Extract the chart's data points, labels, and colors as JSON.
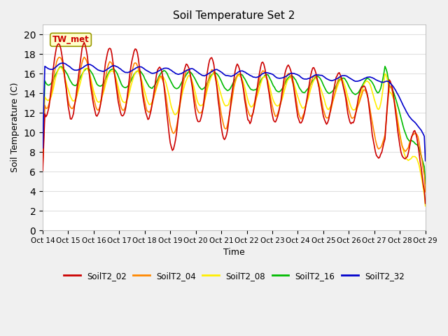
{
  "title": "Soil Temperature Set 2",
  "xlabel": "Time",
  "ylabel": "Soil Temperature (C)",
  "ylim": [
    0,
    21
  ],
  "yticks": [
    0,
    2,
    4,
    6,
    8,
    10,
    12,
    14,
    16,
    18,
    20
  ],
  "xtick_labels": [
    "Oct 14",
    "Oct 15",
    "Oct 16",
    "Oct 17",
    "Oct 18",
    "Oct 19",
    "Oct 20",
    "Oct 21",
    "Oct 22",
    "Oct 23",
    "Oct 24",
    "Oct 25",
    "Oct 26",
    "Oct 27",
    "Oct 28",
    "Oct 29"
  ],
  "annotation_text": "TW_met",
  "fig_bg": "#f0f0f0",
  "plot_bg": "#ffffff",
  "grid_color": "#e0e0e0",
  "series_colors": {
    "SoilT2_02": "#cc0000",
    "SoilT2_04": "#ff8800",
    "SoilT2_08": "#ffee00",
    "SoilT2_16": "#00bb00",
    "SoilT2_32": "#0000cc"
  },
  "lw": 1.2
}
